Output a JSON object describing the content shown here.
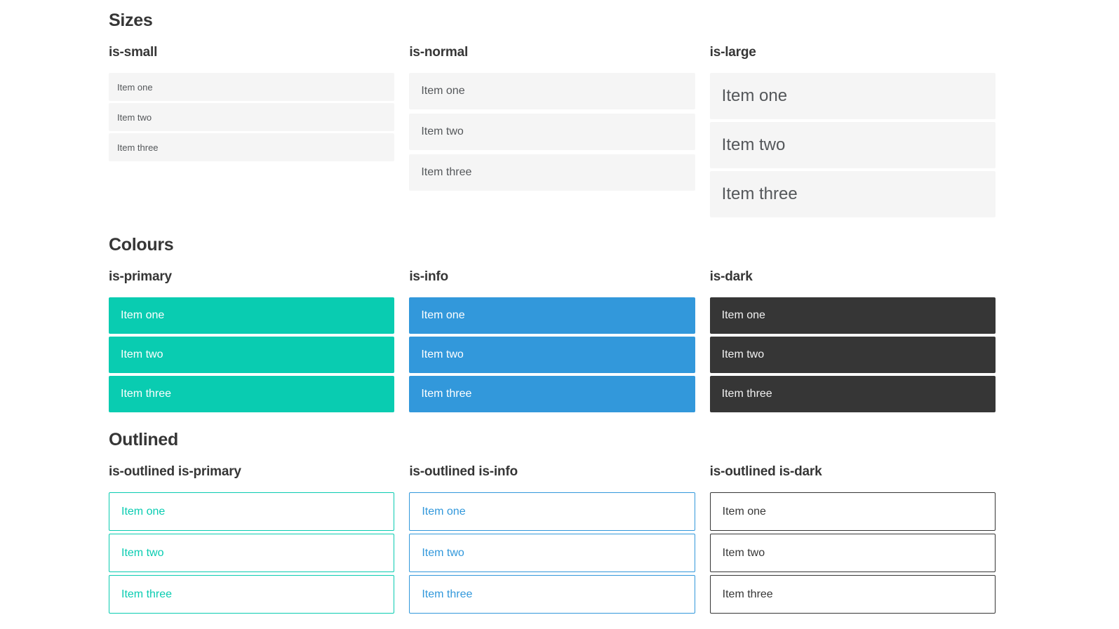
{
  "colors": {
    "primary": "#09ccb1",
    "info": "#3298db",
    "dark": "#363636",
    "item_bg": "#f5f5f5",
    "item_text": "#54575a",
    "heading_text": "#363636",
    "on_color_text": "#ffffff"
  },
  "sections": [
    {
      "title": "Sizes",
      "groups": [
        {
          "label": "is-small",
          "items": [
            "Item one",
            "Item two",
            "Item three"
          ]
        },
        {
          "label": "is-normal",
          "items": [
            "Item one",
            "Item two",
            "Item three"
          ]
        },
        {
          "label": "is-large",
          "items": [
            "Item one",
            "Item two",
            "Item three"
          ]
        }
      ]
    },
    {
      "title": "Colours",
      "groups": [
        {
          "label": "is-primary",
          "items": [
            "Item one",
            "Item two",
            "Item three"
          ]
        },
        {
          "label": "is-info",
          "items": [
            "Item one",
            "Item two",
            "Item three"
          ]
        },
        {
          "label": "is-dark",
          "items": [
            "Item one",
            "Item two",
            "Item three"
          ]
        }
      ]
    },
    {
      "title": "Outlined",
      "groups": [
        {
          "label": "is-outlined is-primary",
          "items": [
            "Item one",
            "Item two",
            "Item three"
          ]
        },
        {
          "label": "is-outlined is-info",
          "items": [
            "Item one",
            "Item two",
            "Item three"
          ]
        },
        {
          "label": "is-outlined is-dark",
          "items": [
            "Item one",
            "Item two",
            "Item three"
          ]
        }
      ]
    }
  ]
}
